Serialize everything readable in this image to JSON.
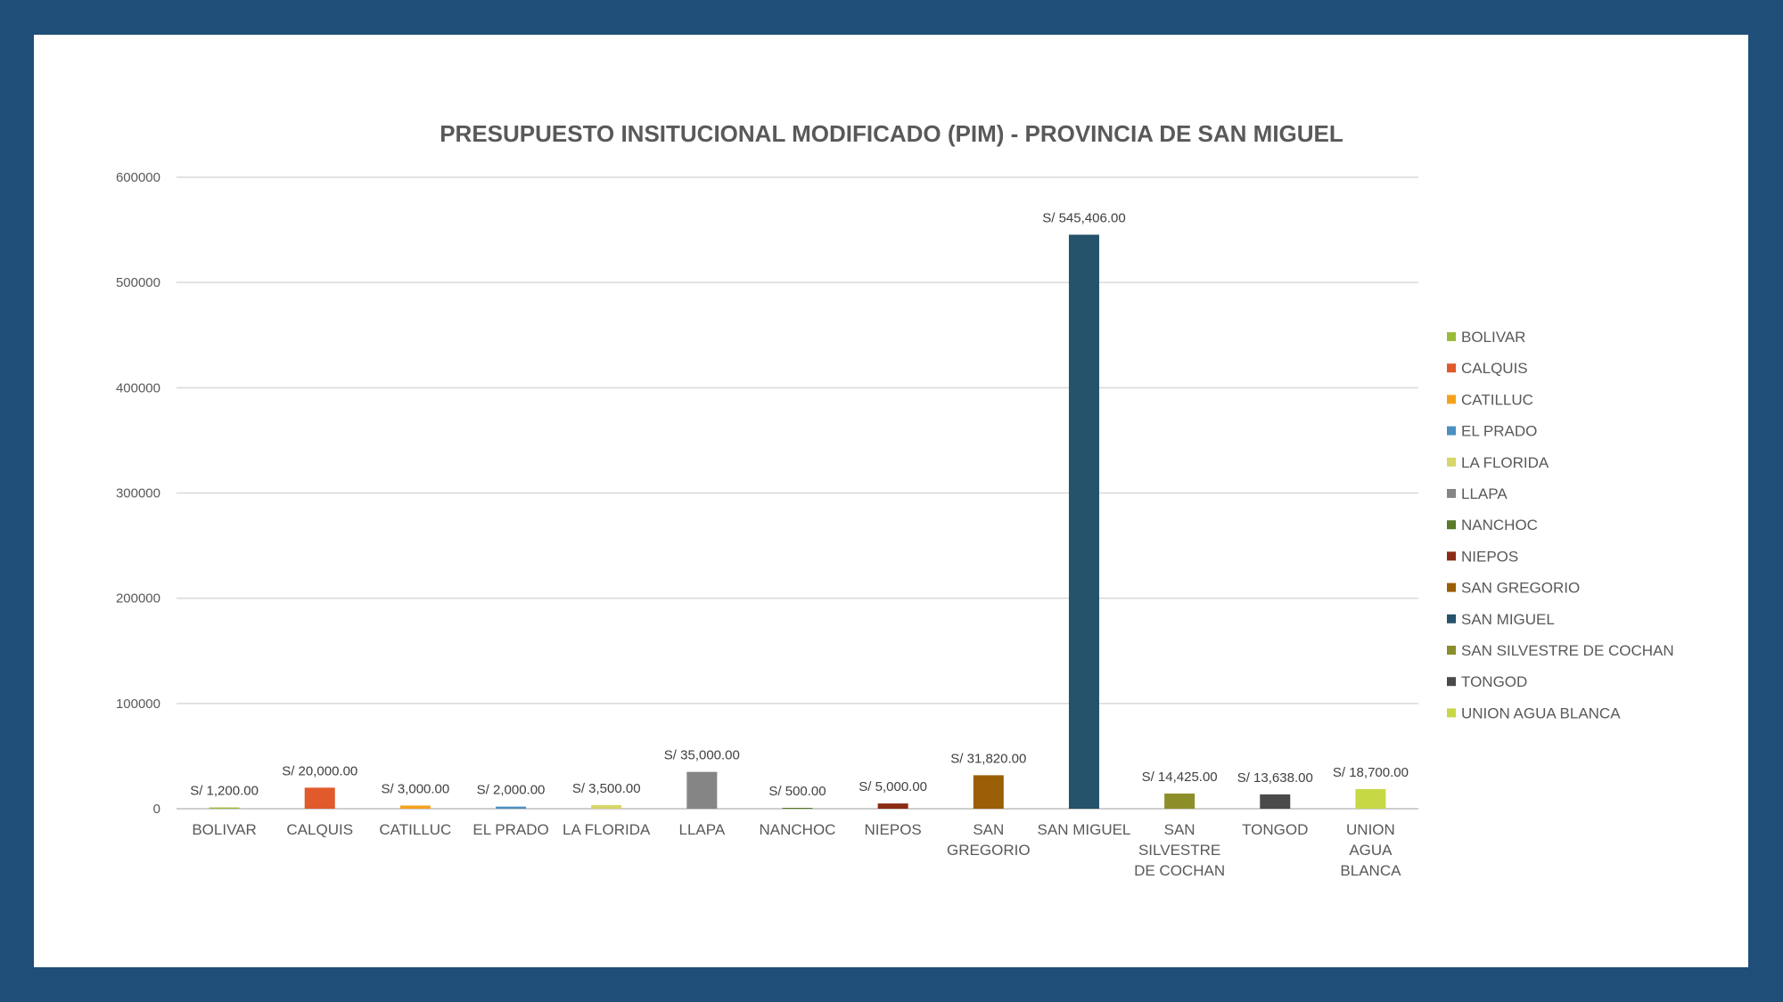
{
  "chart_data": {
    "type": "bar",
    "title": "PRESUPUESTO INSITUCIONAL MODIFICADO (PIM) - PROVINCIA DE SAN MIGUEL",
    "xlabel": "",
    "ylabel": "",
    "ylim": [
      0,
      600000
    ],
    "yticks": [
      "0",
      "100000",
      "200000",
      "300000",
      "400000",
      "500000",
      "600000"
    ],
    "grid": true,
    "legend_position": "right",
    "categories": [
      "BOLIVAR",
      "CALQUIS",
      "CATILLUC",
      "EL PRADO",
      "LA FLORIDA",
      "LLAPA",
      "NANCHOC",
      "NIEPOS",
      "SAN GREGORIO",
      "SAN MIGUEL",
      "SAN SILVESTRE DE COCHAN",
      "TONGOD",
      "UNION AGUA BLANCA"
    ],
    "tick_labels": [
      [
        "BOLIVAR"
      ],
      [
        "CALQUIS"
      ],
      [
        "CATILLUC"
      ],
      [
        "EL PRADO"
      ],
      [
        "LA FLORIDA"
      ],
      [
        "LLAPA"
      ],
      [
        "NANCHOC"
      ],
      [
        "NIEPOS"
      ],
      [
        "SAN",
        "GREGORIO"
      ],
      [
        "SAN MIGUEL"
      ],
      [
        "SAN",
        "SILVESTRE",
        "DE COCHAN"
      ],
      [
        "TONGOD"
      ],
      [
        "UNION",
        "AGUA",
        "BLANCA"
      ]
    ],
    "values": [
      1200,
      20000,
      3000,
      2000,
      3500,
      35000,
      500,
      5000,
      31820,
      545406,
      14425,
      13638,
      18700
    ],
    "data_labels": [
      "S/ 1,200.00",
      "S/ 20,000.00",
      "S/ 3,000.00",
      "S/ 2,000.00",
      "S/ 3,500.00",
      "S/ 35,000.00",
      "S/ 500.00",
      "S/ 5,000.00",
      "S/ 31,820.00",
      "S/ 545,406.00",
      "S/ 14,425.00",
      "S/ 13,638.00",
      "S/ 18,700.00"
    ],
    "colors": [
      "#9bbb3b",
      "#e05a2b",
      "#f4a21d",
      "#4a90c0",
      "#d6d66a",
      "#858585",
      "#5b7a2a",
      "#8b2c14",
      "#9a5f07",
      "#24536b",
      "#8c8e2a",
      "#4a4a4a",
      "#c7d845"
    ]
  }
}
